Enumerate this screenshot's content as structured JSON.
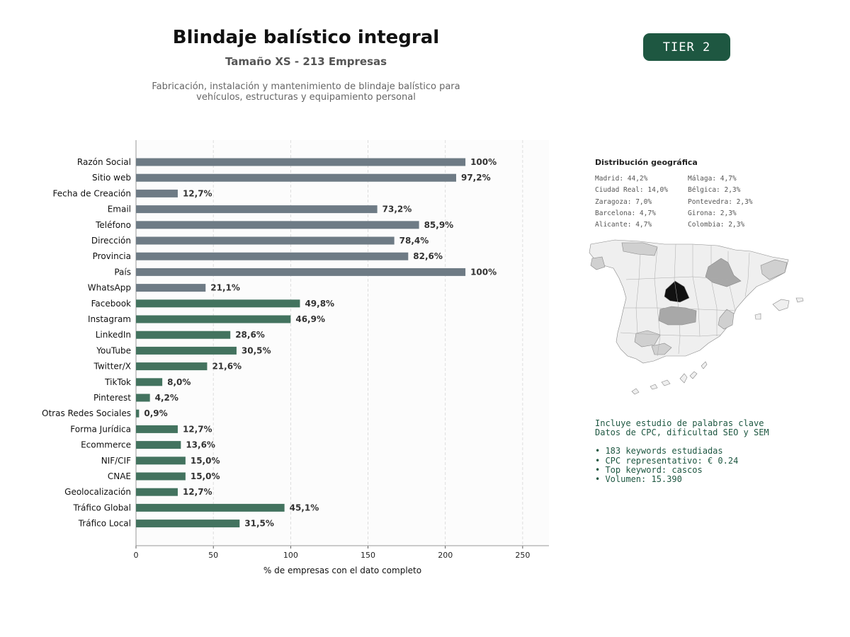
{
  "header": {
    "title": "Blindaje balístico integral",
    "subtitle": "Tamaño XS - 213 Empresas",
    "description_line1": "Fabricación, instalación y mantenimiento de blindaje balístico para",
    "description_line2": "vehículos, estructuras y equipamiento personal",
    "tier_label": "TIER 2"
  },
  "colors": {
    "gray_bar": "#6e7b85",
    "green_bar": "#43735f",
    "badge": "#1e5741",
    "map_highlight": "#111111",
    "map_medium": "#a8a8a8",
    "map_light": "#d0d0d0",
    "map_base": "#efefef"
  },
  "chart_data": {
    "type": "bar",
    "orientation": "horizontal",
    "title": "",
    "xlabel": "% de empresas con el dato completo",
    "ylabel": "",
    "xlim": [
      0,
      267
    ],
    "xticks": [
      0,
      50,
      100,
      150,
      200,
      250
    ],
    "grid": "vertical dashed",
    "categories": [
      "Razón Social",
      "Sitio web",
      "Fecha de Creación",
      "Email",
      "Teléfono",
      "Dirección",
      "Provincia",
      "País",
      "WhatsApp",
      "Facebook",
      "Instagram",
      "LinkedIn",
      "YouTube",
      "Twitter/X",
      "TikTok",
      "Pinterest",
      "Otras Redes Sociales",
      "Forma Jurídica",
      "Ecommerce",
      "NIF/CIF",
      "CNAE",
      "Geolocalización",
      "Tráfico Global",
      "Tráfico Local"
    ],
    "values": [
      213,
      207,
      27,
      156,
      183,
      167,
      176,
      213,
      45,
      106,
      100,
      61,
      65,
      46,
      17,
      9,
      2,
      27,
      29,
      32,
      32,
      27,
      96,
      67
    ],
    "labels": [
      "100%",
      "97,2%",
      "12,7%",
      "73,2%",
      "85,9%",
      "78,4%",
      "82,6%",
      "100%",
      "21,1%",
      "49,8%",
      "46,9%",
      "28,6%",
      "30,5%",
      "21,6%",
      "8,0%",
      "4,2%",
      "0,9%",
      "12,7%",
      "13,6%",
      "15,0%",
      "15,0%",
      "12,7%",
      "45,1%",
      "31,5%"
    ],
    "bar_groups": [
      "gray",
      "gray",
      "gray",
      "gray",
      "gray",
      "gray",
      "gray",
      "gray",
      "gray",
      "green",
      "green",
      "green",
      "green",
      "green",
      "green",
      "green",
      "green",
      "green",
      "green",
      "green",
      "green",
      "green",
      "green",
      "green"
    ]
  },
  "geo": {
    "title": "Distribución geográfica",
    "column1": [
      "Madrid: 44,2%",
      "Ciudad Real: 14,0%",
      "Zaragoza: 7,0%",
      "Barcelona: 4,7%",
      "Alicante: 4,7%"
    ],
    "column2": [
      "Málaga: 4,7%",
      "Bélgica: 2,3%",
      "Pontevedra: 2,3%",
      "Girona: 2,3%",
      "Colombia: 2,3%"
    ]
  },
  "keywords": {
    "line1": "Incluye estudio de palabras clave",
    "line2": "Datos de CPC, dificultad SEO y SEM",
    "items": [
      "• 183 keywords estudiadas",
      "• CPC representativo: € 0.24",
      "• Top keyword: cascos",
      "• Volumen: 15.390"
    ]
  }
}
